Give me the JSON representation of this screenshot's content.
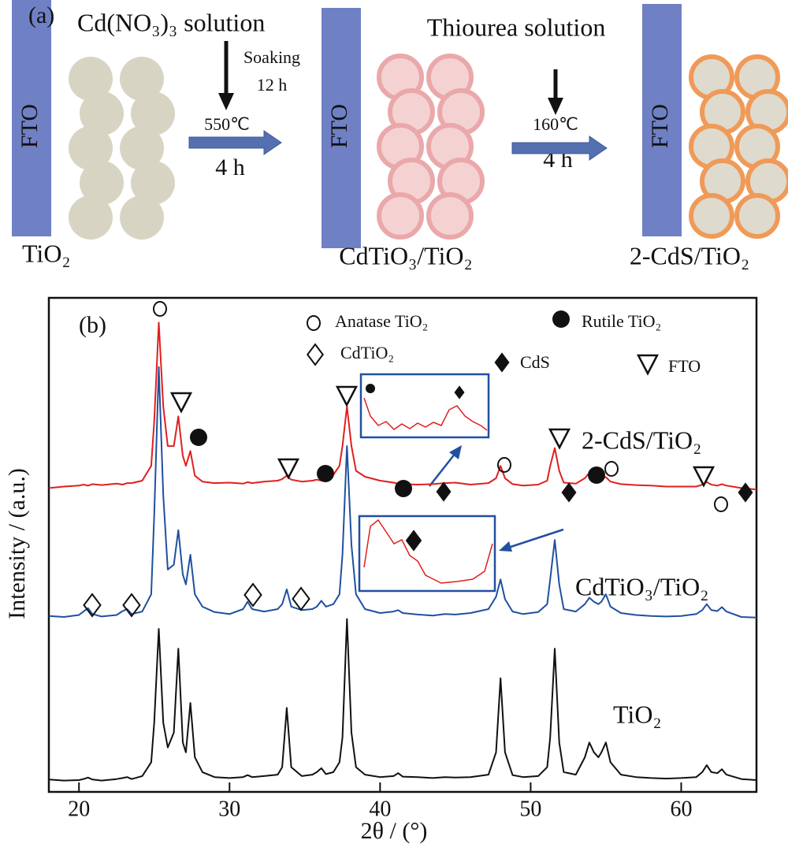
{
  "schematic": {
    "panel_label": "(a)",
    "substrate": [
      "FTO",
      "FTO",
      "FTO"
    ],
    "stages": [
      "TiO₂",
      "CdTiO₃/TiO₂",
      "2-CdS/TiO₂"
    ],
    "step1": {
      "solution": "Cd(NO₃)₃ solution",
      "soak": "Soaking",
      "soak_time": "12 h",
      "temperature": "550℃",
      "time": "4 h"
    },
    "step2": {
      "solution": "Thiourea solution",
      "temperature": "160℃",
      "time": "4 h"
    }
  },
  "chart_data": {
    "type": "line",
    "panel_label": "(b)",
    "x_label": "2θ / (°)",
    "y_label": "Intensity / (a.u.)",
    "annotations": [
      "Anatase TiO₂",
      "Rutile TiO₂",
      "CdTiO₂",
      "CdS",
      "FTO"
    ],
    "xlim": [
      18,
      65
    ],
    "xticks": [
      20,
      30,
      40,
      50,
      60
    ],
    "ylim": [
      0,
      100
    ],
    "x": [
      18,
      19,
      20,
      20.3,
      20.6,
      20.9,
      21.5,
      22.5,
      22.9,
      23.2,
      23.5,
      24.2,
      24.8,
      25.0,
      25.3,
      25.6,
      25.9,
      26.3,
      26.6,
      26.9,
      27.1,
      27.4,
      27.7,
      28.2,
      29,
      30,
      30.9,
      31.2,
      31.5,
      32.3,
      33.2,
      33.5,
      33.8,
      34.1,
      34.8,
      35.5,
      35.8,
      36.1,
      36.4,
      36.9,
      37.3,
      37.5,
      37.8,
      38.1,
      38.4,
      39,
      40,
      40.9,
      41.2,
      41.5,
      42.5,
      43.5,
      44.3,
      45,
      46,
      47.2,
      47.7,
      48.0,
      48.3,
      48.8,
      49.5,
      50.5,
      51.1,
      51.3,
      51.6,
      51.9,
      52.2,
      53,
      53.6,
      53.9,
      54.2,
      54.5,
      54.7,
      55.0,
      55.3,
      56,
      57,
      58,
      59,
      60,
      61,
      61.4,
      61.7,
      62.0,
      62.4,
      62.7,
      63.0,
      64,
      65
    ],
    "series": [
      {
        "name": "2-CdS/TiO₂",
        "color": "#e0201e",
        "values": [
          61.5,
          61.8,
          62,
          62.2,
          62,
          62.3,
          62.1,
          62.4,
          62.2,
          62.5,
          62.5,
          63,
          66,
          75,
          95,
          78,
          70,
          70,
          76,
          68,
          66,
          69,
          64,
          62.8,
          62.5,
          62.6,
          62.4,
          62.7,
          62.5,
          62.8,
          63,
          63.3,
          64,
          63.2,
          62.8,
          63,
          63.2,
          63,
          63.6,
          64.2,
          66,
          70,
          78,
          70,
          65,
          63.8,
          63,
          62.6,
          62.4,
          62.3,
          62.2,
          62.3,
          62.5,
          62.6,
          62.2,
          62.5,
          63.5,
          66,
          63.5,
          62.3,
          62,
          62.2,
          63,
          66,
          69.6,
          65,
          62.6,
          62.4,
          63.5,
          64.6,
          64,
          63.6,
          63.4,
          63.7,
          62.8,
          62.3,
          62.1,
          62,
          61.8,
          61.8,
          61.8,
          62.2,
          62.7,
          62.2,
          62,
          62.3,
          62,
          61.5,
          61.2
        ]
      },
      {
        "name": "CdTiO₃/TiO₂",
        "color": "#2050a0",
        "values": [
          35.6,
          35.4,
          35.8,
          36.5,
          37.2,
          36,
          35.5,
          35.8,
          36.6,
          37.0,
          36,
          36.5,
          40,
          56,
          86,
          60,
          45,
          46,
          53,
          44,
          42,
          48,
          40,
          37.5,
          36.4,
          36,
          37,
          38.5,
          37,
          36.5,
          37,
          38,
          41,
          37.5,
          36.8,
          37,
          37.5,
          38.7,
          37.5,
          38,
          40,
          48,
          70,
          50,
          40,
          37,
          36.2,
          36.5,
          36.8,
          36.2,
          35.9,
          35.7,
          36,
          35.9,
          36.2,
          37,
          39.5,
          43,
          39,
          36.5,
          36,
          36.4,
          38,
          43,
          51,
          42,
          37,
          36.5,
          38,
          39.3,
          38.5,
          38,
          38.5,
          40,
          37.5,
          36.2,
          35.8,
          35.6,
          35.5,
          35.6,
          36,
          36.8,
          38,
          36.8,
          36.6,
          37.4,
          36.5,
          35.4,
          35.3
        ]
      },
      {
        "name": "TiO₂",
        "color": "#111111",
        "values": [
          2.5,
          2.3,
          2.4,
          2.6,
          2.9,
          2.5,
          2.3,
          2.6,
          2.8,
          3.0,
          2.6,
          3.2,
          6,
          14,
          33,
          14,
          9,
          12,
          29,
          10,
          8,
          18,
          7,
          4,
          3,
          2.8,
          3,
          3.4,
          3,
          3.2,
          3.5,
          5,
          17,
          5,
          3.2,
          3.5,
          4,
          4.8,
          3.6,
          4,
          6,
          11,
          35,
          12,
          5,
          3.5,
          3,
          3.2,
          3.8,
          3.1,
          3,
          2.8,
          3,
          2.9,
          3,
          3.5,
          8,
          23,
          8,
          3.4,
          3,
          3.2,
          5,
          11,
          29,
          10,
          4,
          3.5,
          7,
          10,
          8,
          7,
          8,
          10,
          6,
          3.5,
          3,
          2.8,
          2.7,
          2.8,
          3,
          4,
          5.4,
          4,
          3.8,
          4.6,
          3.5,
          2.6,
          2.4
        ]
      }
    ]
  }
}
